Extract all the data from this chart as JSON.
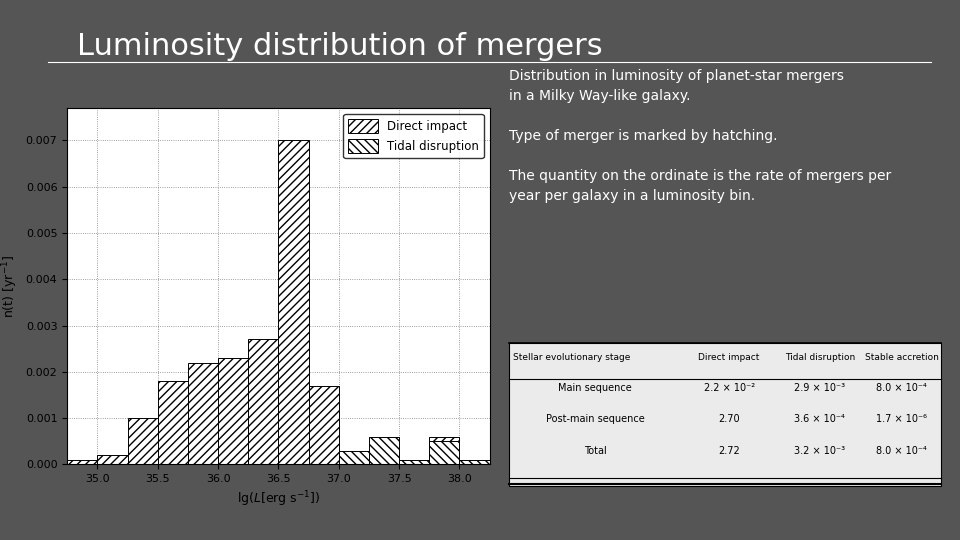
{
  "title": "Luminosity distribution of mergers",
  "bg_color": "#555555",
  "plot_bg_color": "#ffffff",
  "xlabel": "lg($L$[erg s$^{-1}$])",
  "ylabel": "n(t) [yr$^{-1}$]",
  "xlim": [
    34.75,
    38.25
  ],
  "ylim": [
    0,
    0.0077
  ],
  "xticks": [
    35.0,
    35.5,
    36.0,
    36.5,
    37.0,
    37.5,
    38.0
  ],
  "yticks": [
    0.0,
    0.001,
    0.002,
    0.003,
    0.004,
    0.005,
    0.006,
    0.007
  ],
  "bin_edges": [
    34.75,
    35.0,
    35.25,
    35.5,
    35.75,
    36.0,
    36.25,
    36.5,
    36.75,
    37.0,
    37.25,
    37.5,
    37.75,
    38.0,
    38.25
  ],
  "direct_impact": [
    0.0001,
    0.0002,
    0.001,
    0.0018,
    0.0022,
    0.0023,
    0.0027,
    0.007,
    0.0017,
    0.0002,
    0.0001,
    0.0001,
    0.0006,
    0.0001
  ],
  "tidal_disruption": [
    0.0,
    0.0,
    0.0,
    0.0,
    0.0,
    0.0,
    0.0,
    0.0,
    0.0,
    0.0003,
    0.0006,
    0.0001,
    0.0005,
    0.0001
  ],
  "text_color": "#ffffff",
  "description_lines": [
    "Distribution in luminosity of planet-star mergers",
    "in a Milky Way-like galaxy.",
    "",
    "Type of merger is marked by hatching.",
    "",
    "The quantity on the ordinate is the rate of mergers per",
    "year per galaxy in a luminosity bin."
  ],
  "table_headers": [
    "Stellar evolutionary stage",
    "Direct impact",
    "Tidal disruption",
    "Stable accretion"
  ],
  "table_rows": [
    [
      "Main sequence",
      "2.2 × 10⁻²",
      "2.9 × 10⁻³",
      "8.0 × 10⁻⁴"
    ],
    [
      "Post-main sequence",
      "2.70",
      "3.6 × 10⁻⁴",
      "1.7 × 10⁻⁶"
    ],
    [
      "Total",
      "2.72",
      "3.2 × 10⁻³",
      "8.0 × 10⁻⁴"
    ]
  ]
}
